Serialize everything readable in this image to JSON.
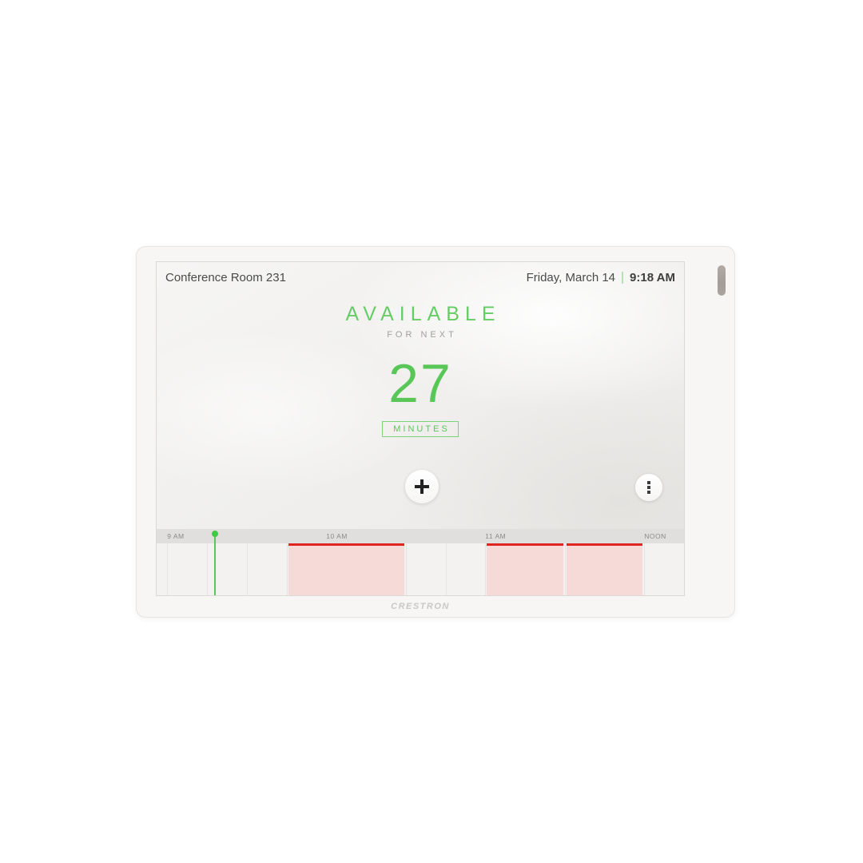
{
  "panel": {
    "room_name": "Conference Room 231",
    "date": "Friday, March 14",
    "time": "9:18 AM",
    "status": "AVAILABLE",
    "status_sub": "FOR NEXT",
    "countdown_value": "27",
    "countdown_unit": "MINUTES",
    "brand": "CRESTRON"
  },
  "colors": {
    "available_green": "#66cc66",
    "marker_green": "#41c941",
    "busy_red_border": "#e0241f",
    "busy_red_fill": "#f6dad8"
  },
  "icons": {
    "add": "plus-icon",
    "menu": "vertical-ellipsis-icon"
  },
  "timeline": {
    "range_start_min": 536,
    "range_end_min": 735,
    "gridline_interval_min": 15,
    "current": {
      "min": 558,
      "label": "9:18 AM"
    },
    "labels": [
      {
        "text": "9 AM",
        "min": 540
      },
      {
        "text": "10 AM",
        "min": 600
      },
      {
        "text": "11 AM",
        "min": 660
      },
      {
        "text": "NOON",
        "min": 720
      }
    ],
    "events": [
      {
        "start": "9:45 AM",
        "end": "10:30 AM",
        "start_min": 585,
        "end_min": 630,
        "status": "busy"
      },
      {
        "start": "11:00 AM",
        "end": "11:30 AM",
        "start_min": 660,
        "end_min": 690,
        "status": "busy"
      },
      {
        "start": "11:30 AM",
        "end": "12:00 PM",
        "start_min": 690,
        "end_min": 720,
        "status": "busy"
      }
    ]
  }
}
